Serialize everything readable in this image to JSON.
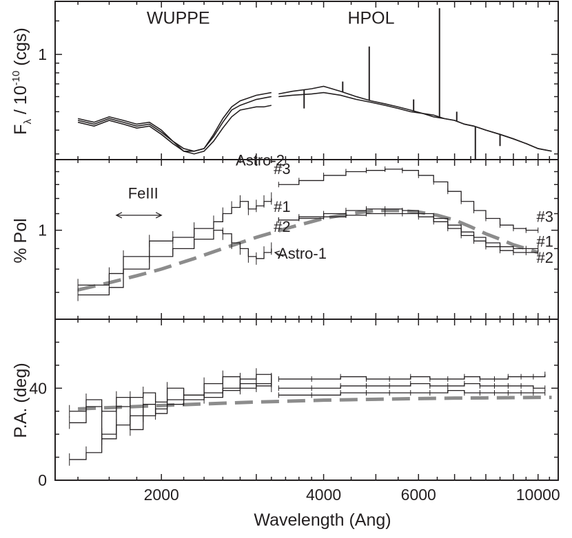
{
  "chart_data": [
    {
      "type": "line",
      "panel": "flux",
      "ylabel": "F_λ / 10^-10 (cgs)",
      "ylabel_parts": {
        "f": "F",
        "sub": "λ",
        "mid": " / 10",
        "sup": "-10",
        "tail": " (cgs)"
      },
      "ylog": true,
      "ylim": [
        0.28,
        1.9
      ],
      "yticks": [
        {
          "value": 1,
          "label": "1"
        }
      ],
      "annotations": [
        {
          "text": "WUPPE",
          "x": 2150,
          "y": 1.45
        },
        {
          "text": "HPOL",
          "x": 4900,
          "y": 1.45
        }
      ],
      "series": [
        {
          "x": [
            1400,
            1500,
            1600,
            1700,
            1800,
            1900,
            2000,
            2100,
            2200,
            2300,
            2400,
            2500,
            2600,
            2700,
            2800,
            2900,
            3000,
            3100,
            3200
          ],
          "values": [
            0.44,
            0.42,
            0.45,
            0.43,
            0.41,
            0.42,
            0.38,
            0.34,
            0.31,
            0.3,
            0.31,
            0.35,
            0.41,
            0.47,
            0.51,
            0.52,
            0.53,
            0.53,
            0.54
          ]
        },
        {
          "x": [
            1400,
            1500,
            1600,
            1700,
            1800,
            1900,
            2000,
            2100,
            2200,
            2300,
            2400,
            2500,
            2600,
            2700,
            2800,
            2900,
            3000,
            3100,
            3200
          ],
          "values": [
            0.45,
            0.43,
            0.46,
            0.44,
            0.42,
            0.43,
            0.39,
            0.35,
            0.31,
            0.31,
            0.32,
            0.37,
            0.44,
            0.51,
            0.54,
            0.56,
            0.58,
            0.59,
            0.6
          ]
        },
        {
          "x": [
            1400,
            1500,
            1600,
            1700,
            1800,
            1900,
            2000,
            2100,
            2200,
            2300,
            2400,
            2500,
            2600,
            2700,
            2800,
            2900,
            3000,
            3100,
            3200
          ],
          "values": [
            0.46,
            0.44,
            0.47,
            0.45,
            0.43,
            0.44,
            0.4,
            0.35,
            0.32,
            0.31,
            0.32,
            0.38,
            0.46,
            0.53,
            0.57,
            0.59,
            0.61,
            0.62,
            0.63
          ]
        },
        {
          "x": [
            3300,
            3500,
            3800,
            4000,
            4300,
            4600,
            4900,
            5200,
            5500,
            5800,
            6100,
            6400,
            6700,
            7000,
            7300,
            7600,
            8000,
            8500,
            9000,
            9500,
            10000,
            10600
          ],
          "values": [
            0.62,
            0.64,
            0.66,
            0.68,
            0.64,
            0.6,
            0.57,
            0.55,
            0.53,
            0.51,
            0.49,
            0.48,
            0.46,
            0.45,
            0.43,
            0.42,
            0.4,
            0.38,
            0.36,
            0.34,
            0.32,
            0.31
          ]
        },
        {
          "x": [
            3300,
            3500,
            3800,
            4000,
            4300,
            4600,
            4900,
            5200,
            5500,
            5800,
            6100,
            6400,
            6700,
            7000,
            7300,
            7600,
            8000,
            8500,
            9000,
            9500,
            10000,
            10600
          ],
          "values": [
            0.6,
            0.61,
            0.62,
            0.63,
            0.61,
            0.58,
            0.56,
            0.54,
            0.52,
            0.5,
            0.49,
            0.47,
            0.46,
            0.45,
            0.43,
            0.42,
            0.4,
            0.38,
            0.36,
            0.34,
            0.32,
            0.31
          ]
        }
      ],
      "emission_lines": [
        {
          "x": 4340,
          "peak": 0.72
        },
        {
          "x": 4861,
          "peak": 1.1
        },
        {
          "x": 5876,
          "peak": 0.58
        },
        {
          "x": 6563,
          "peak": 1.75
        },
        {
          "x": 7065,
          "peak": 0.5
        }
      ],
      "absorption_lines": [
        {
          "x": 3680,
          "min": 0.52
        },
        {
          "x": 7650,
          "min": 0.28
        },
        {
          "x": 8500,
          "min": 0.33
        }
      ]
    },
    {
      "type": "line",
      "panel": "polarization",
      "ylabel": "% Pol",
      "ylog": true,
      "ylim": [
        0.6,
        1.5
      ],
      "yticks": [
        {
          "value": 1,
          "label": "1"
        }
      ],
      "annotations": [
        {
          "text": "FeIII",
          "x": 1850,
          "y": 1.2
        },
        {
          "text": "Astro-2",
          "x": 3050,
          "y": 1.45
        },
        {
          "text": "Astro-1",
          "x": 3650,
          "y": 0.85
        },
        {
          "text": "#3",
          "x": 3350,
          "y": 1.38
        },
        {
          "text": "#1",
          "x": 3350,
          "y": 1.11
        },
        {
          "text": "#2",
          "x": 3350,
          "y": 0.99
        },
        {
          "text": "#3",
          "x": 10300,
          "y": 1.05
        },
        {
          "text": "#1",
          "x": 10300,
          "y": 0.91
        },
        {
          "text": "#2",
          "x": 10300,
          "y": 0.83
        }
      ],
      "feiii_range": [
        1650,
        2000
      ],
      "series": [
        {
          "name": "Astro-2",
          "x": [
            1400,
            1600,
            1700,
            1900,
            2100,
            2300,
            2500,
            2600,
            2700,
            2800,
            2900,
            3000,
            3100,
            3200
          ],
          "values": [
            0.73,
            0.78,
            0.86,
            0.94,
            0.96,
            1.01,
            1.05,
            1.1,
            1.14,
            1.18,
            1.13,
            1.15,
            1.18,
            1.2
          ]
        },
        {
          "name": "Astro-1",
          "x": [
            1400,
            1600,
            1700,
            1900,
            2100,
            2300,
            2500,
            2600,
            2700,
            2800,
            2900,
            3000,
            3100,
            3200
          ],
          "values": [
            0.69,
            0.72,
            0.8,
            0.86,
            0.9,
            0.95,
            1.0,
            0.98,
            0.93,
            0.9,
            0.86,
            0.85,
            0.88,
            0.9
          ]
        },
        {
          "name": "#3",
          "x": [
            3300,
            3600,
            4000,
            4400,
            4800,
            5200,
            5600,
            6000,
            6400,
            6800,
            7200,
            7600,
            8000,
            8500,
            9000,
            9500,
            10000
          ],
          "values": [
            1.3,
            1.33,
            1.37,
            1.4,
            1.41,
            1.42,
            1.41,
            1.37,
            1.32,
            1.25,
            1.18,
            1.12,
            1.07,
            1.03,
            1.01,
            1.0,
            1.0
          ]
        },
        {
          "name": "#1",
          "x": [
            3300,
            3600,
            4000,
            4400,
            4800,
            5200,
            5600,
            6000,
            6400,
            6800,
            7200,
            7600,
            8000,
            8500,
            9000,
            9500,
            10000
          ],
          "values": [
            1.06,
            1.08,
            1.1,
            1.12,
            1.13,
            1.13,
            1.12,
            1.1,
            1.07,
            1.03,
            0.99,
            0.96,
            0.93,
            0.91,
            0.9,
            0.9,
            0.9
          ]
        },
        {
          "name": "#2",
          "x": [
            3300,
            3600,
            4000,
            4400,
            4800,
            5200,
            5600,
            6000,
            6400,
            6800,
            7200,
            7600,
            8000,
            8500,
            9000,
            9500,
            10000
          ],
          "values": [
            1.06,
            1.07,
            1.08,
            1.09,
            1.1,
            1.1,
            1.1,
            1.08,
            1.05,
            1.01,
            0.97,
            0.94,
            0.91,
            0.89,
            0.88,
            0.88,
            0.88
          ]
        }
      ],
      "fit": {
        "x": [
          1400,
          1600,
          1800,
          2000,
          2300,
          2600,
          3000,
          3500,
          4000,
          4500,
          5000,
          5500,
          6000,
          6500,
          7000,
          7500,
          8000,
          8500,
          9000,
          9500,
          10000
        ],
        "values": [
          0.71,
          0.74,
          0.77,
          0.8,
          0.85,
          0.9,
          0.96,
          1.02,
          1.07,
          1.1,
          1.12,
          1.12,
          1.11,
          1.09,
          1.06,
          1.02,
          0.98,
          0.95,
          0.92,
          0.9,
          0.88
        ]
      }
    },
    {
      "type": "line",
      "panel": "position-angle",
      "ylabel": "P.A. (deg)",
      "xlabel": "Wavelength (Ang)",
      "xlog": true,
      "xlim": [
        1270,
        10900
      ],
      "xticks": [
        {
          "value": 2000,
          "label": "2000"
        },
        {
          "value": 4000,
          "label": "4000"
        },
        {
          "value": 6000,
          "label": "6000"
        },
        {
          "value": 10000,
          "label": "10000"
        }
      ],
      "ylim": [
        0,
        70
      ],
      "yticks": [
        {
          "value": 0,
          "label": "0"
        },
        {
          "value": 40,
          "label": "40"
        }
      ],
      "series": [
        {
          "x": [
            1350,
            1450,
            1550,
            1650,
            1750,
            1850,
            1950,
            2050,
            2200,
            2400,
            2600,
            2800,
            3000,
            3200
          ],
          "values": [
            25,
            32,
            30,
            36,
            22,
            28,
            31,
            40,
            37,
            42,
            45,
            40,
            42,
            41
          ]
        },
        {
          "x": [
            1350,
            1450,
            1550,
            1650,
            1750,
            1850,
            1950,
            2050,
            2200,
            2400,
            2600,
            2800,
            3000,
            3200
          ],
          "values": [
            30,
            35,
            18,
            24,
            28,
            33,
            29,
            33,
            35,
            38,
            40,
            44,
            46,
            43
          ]
        },
        {
          "x": [
            1350,
            1450,
            1550,
            1650,
            1750,
            1850,
            1950,
            2050,
            2200,
            2400,
            2600,
            2800,
            3000,
            3200
          ],
          "values": [
            9,
            12,
            20,
            32,
            36,
            38,
            34,
            35,
            37,
            36,
            39,
            42,
            41,
            44
          ]
        },
        {
          "x": [
            3300,
            3800,
            4300,
            4800,
            5300,
            5800,
            6300,
            6800,
            7300,
            7800,
            8300,
            8800,
            9300,
            9800,
            10300
          ],
          "values": [
            44,
            44,
            45,
            44,
            44,
            45,
            44,
            44,
            45,
            44,
            44,
            45,
            45,
            45,
            46
          ]
        },
        {
          "x": [
            3300,
            3800,
            4300,
            4800,
            5300,
            5800,
            6300,
            6800,
            7300,
            7800,
            8300,
            8800,
            9300,
            9800,
            10300
          ],
          "values": [
            40,
            40,
            41,
            41,
            41,
            42,
            41,
            41,
            42,
            41,
            41,
            41,
            41,
            40,
            40
          ]
        },
        {
          "x": [
            3300,
            3800,
            4300,
            4800,
            5300,
            5800,
            6300,
            6800,
            7300,
            7800,
            8300,
            8800,
            9300,
            9800,
            10300
          ],
          "values": [
            37,
            37,
            38,
            38,
            38,
            38,
            38,
            39,
            38,
            38,
            38,
            38,
            38,
            38,
            38
          ]
        }
      ],
      "fit": {
        "x": [
          1400,
          2000,
          3000,
          4000,
          5000,
          6000,
          7000,
          8000,
          9000,
          10000,
          10600
        ],
        "values": [
          31,
          32.5,
          34,
          34.8,
          35.2,
          35.5,
          35.7,
          35.8,
          35.9,
          36,
          36
        ]
      }
    }
  ]
}
